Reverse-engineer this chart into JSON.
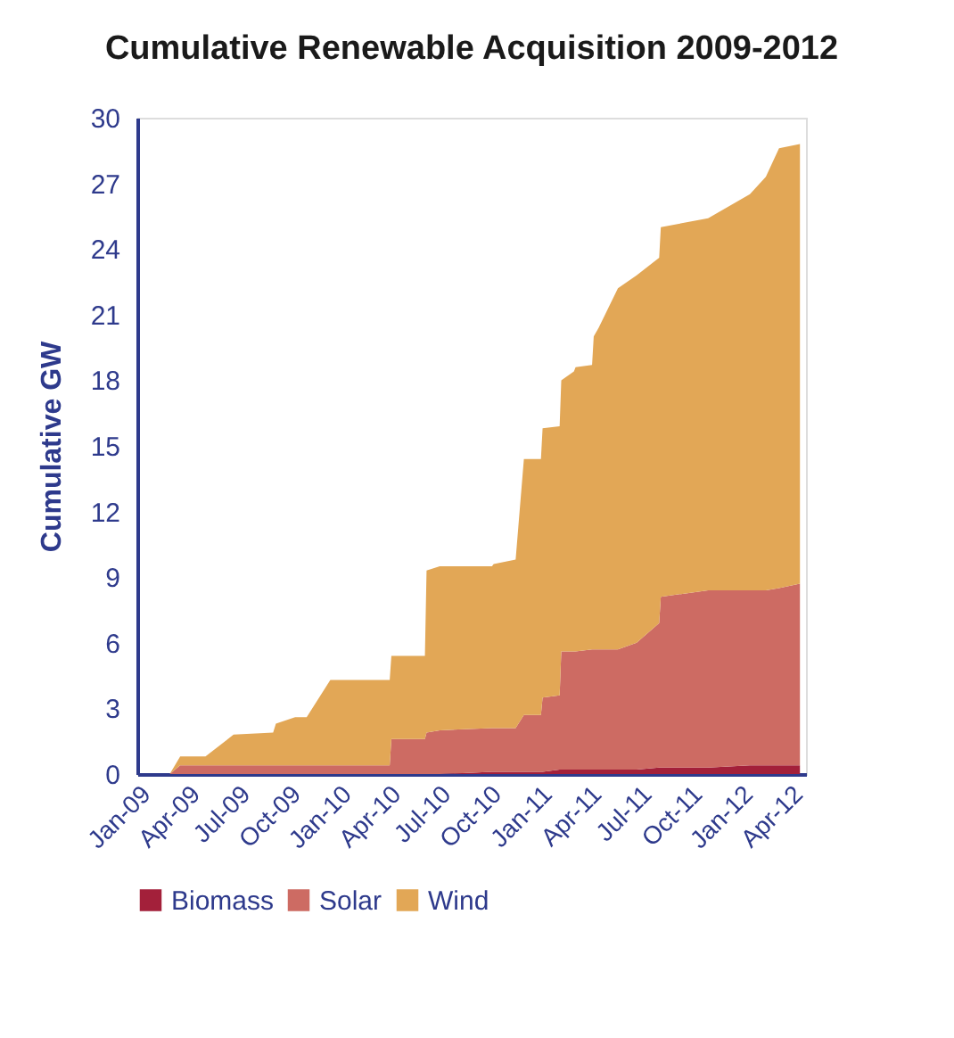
{
  "chart_data": {
    "type": "area",
    "title": "Cumulative Renewable Acquisition 2009-2012",
    "ylabel": "Cumulative GW",
    "stacked": true,
    "legend": "bottom",
    "grid": false,
    "x": [
      "2009-01-01",
      "2009-03-01",
      "2009-03-20",
      "2009-05-05",
      "2009-06-25",
      "2009-09-05",
      "2009-09-10",
      "2009-10-15",
      "2009-11-05",
      "2009-12-18",
      "2010-04-05",
      "2010-04-08",
      "2010-06-08",
      "2010-06-11",
      "2010-07-05",
      "2010-10-08",
      "2010-10-11",
      "2010-11-20",
      "2010-12-05",
      "2011-01-05",
      "2011-01-08",
      "2011-02-08",
      "2011-02-11",
      "2011-03-06",
      "2011-03-09",
      "2011-04-08",
      "2011-04-11",
      "2011-04-20",
      "2011-05-25",
      "2011-06-28",
      "2011-08-08",
      "2011-08-11",
      "2011-11-05",
      "2012-01-20",
      "2012-02-18",
      "2012-03-13",
      "2012-04-20"
    ],
    "series": [
      {
        "name": "Biomass",
        "color": "#a3203a",
        "values": [
          0,
          0,
          0,
          0,
          0,
          0,
          0,
          0,
          0,
          0,
          0,
          0,
          0,
          0,
          0,
          0.1,
          0.1,
          0.1,
          0.1,
          0.1,
          0.1,
          0.2,
          0.2,
          0.2,
          0.2,
          0.2,
          0.2,
          0.2,
          0.2,
          0.2,
          0.3,
          0.3,
          0.3,
          0.4,
          0.4,
          0.4,
          0.4
        ]
      },
      {
        "name": "Solar",
        "color": "#cd6b63",
        "values": [
          0,
          0,
          0.4,
          0.4,
          0.4,
          0.4,
          0.4,
          0.4,
          0.4,
          0.4,
          0.4,
          1.6,
          1.6,
          1.9,
          2.0,
          2.0,
          2.0,
          2.0,
          2.6,
          2.6,
          3.4,
          3.4,
          5.4,
          5.4,
          5.4,
          5.5,
          5.5,
          5.5,
          5.5,
          5.8,
          6.6,
          7.8,
          8.1,
          8.0,
          8.0,
          8.1,
          8.3
        ]
      },
      {
        "name": "Wind",
        "color": "#e2a756",
        "values": [
          0,
          0,
          0.4,
          0.4,
          1.4,
          1.5,
          1.9,
          2.2,
          2.2,
          3.9,
          3.9,
          3.8,
          3.8,
          7.4,
          7.5,
          7.4,
          7.5,
          7.7,
          11.7,
          11.7,
          12.3,
          12.3,
          12.4,
          12.8,
          13.0,
          13.0,
          14.3,
          14.7,
          16.5,
          16.8,
          16.7,
          16.9,
          17.0,
          18.1,
          18.9,
          20.1,
          20.1
        ]
      }
    ],
    "xlim": [
      "2009-01-01",
      "2012-05-01"
    ],
    "xticks": [
      {
        "value": "2009-01-01",
        "label": "Jan-09"
      },
      {
        "value": "2009-04-01",
        "label": "Apr-09"
      },
      {
        "value": "2009-07-01",
        "label": "Jul-09"
      },
      {
        "value": "2009-10-01",
        "label": "Oct-09"
      },
      {
        "value": "2010-01-01",
        "label": "Jan-10"
      },
      {
        "value": "2010-04-01",
        "label": "Apr-10"
      },
      {
        "value": "2010-07-01",
        "label": "Jul-10"
      },
      {
        "value": "2010-10-01",
        "label": "Oct-10"
      },
      {
        "value": "2011-01-01",
        "label": "Jan-11"
      },
      {
        "value": "2011-04-01",
        "label": "Apr-11"
      },
      {
        "value": "2011-07-01",
        "label": "Jul-11"
      },
      {
        "value": "2011-10-01",
        "label": "Oct-11"
      },
      {
        "value": "2012-01-01",
        "label": "Jan-12"
      },
      {
        "value": "2012-04-01",
        "label": "Apr-12"
      }
    ],
    "ylim": [
      0,
      30
    ],
    "yticks": [
      0,
      3,
      6,
      9,
      12,
      15,
      18,
      21,
      24,
      27,
      30
    ]
  }
}
